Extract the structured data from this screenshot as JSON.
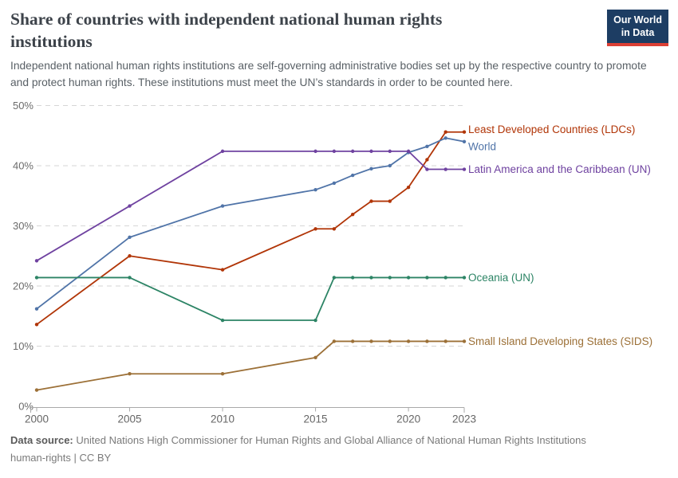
{
  "header": {
    "title": "Share of countries with independent national human rights institutions",
    "subtitle": "Independent national human rights institutions are self-governing administrative bodies set up by the respective country to promote and protect human rights. These institutions must meet the UN’s standards in order to be counted here.",
    "logo": {
      "line1": "Our World",
      "line2": "in Data",
      "bg_color": "#1d3d63",
      "bar_color": "#dc3f34"
    }
  },
  "chart_data": {
    "type": "line",
    "title": "Share of countries with independent national human rights institutions",
    "x": [
      2000,
      2005,
      2010,
      2015,
      2016,
      2017,
      2018,
      2019,
      2020,
      2021,
      2022,
      2023
    ],
    "xlim": [
      2000,
      2023
    ],
    "ylim": [
      0,
      50
    ],
    "xticks": [
      2000,
      2005,
      2010,
      2015,
      2020,
      2023
    ],
    "yticks": [
      0,
      10,
      20,
      30,
      40,
      50
    ],
    "ytick_labels": [
      "0%",
      "10%",
      "20%",
      "30%",
      "40%",
      "50%"
    ],
    "grid": "horizontal-dashed",
    "legend": "end-of-line-labels",
    "series": [
      {
        "name": "Least Developed Countries (LDCs)",
        "color": "#b13507",
        "values": [
          13.6,
          25.0,
          22.7,
          29.5,
          29.5,
          31.9,
          34.1,
          34.1,
          36.4,
          41.0,
          45.6,
          45.6
        ],
        "label_dy": -3
      },
      {
        "name": "World",
        "color": "#5074a8",
        "values": [
          16.2,
          28.1,
          33.3,
          36.0,
          37.1,
          38.4,
          39.5,
          40.0,
          42.2,
          43.2,
          44.6,
          44.0
        ],
        "label_dy": 6
      },
      {
        "name": "Latin America and the Caribbean (UN)",
        "color": "#6f42a0",
        "values": [
          24.2,
          33.3,
          42.4,
          42.4,
          42.4,
          42.4,
          42.4,
          42.4,
          42.4,
          39.4,
          39.4,
          39.4
        ],
        "label_dy": 0
      },
      {
        "name": "Oceania (UN)",
        "color": "#2c8465",
        "values": [
          21.4,
          21.4,
          14.3,
          14.3,
          21.4,
          21.4,
          21.4,
          21.4,
          21.4,
          21.4,
          21.4,
          21.4
        ],
        "label_dy": 0
      },
      {
        "name": "Small Island Developing States (SIDS)",
        "color": "#9c7037",
        "values": [
          2.7,
          5.4,
          5.4,
          8.1,
          10.8,
          10.8,
          10.8,
          10.8,
          10.8,
          10.8,
          10.8,
          10.8
        ],
        "label_dy": 0
      }
    ]
  },
  "footer": {
    "source_label": "Data source:",
    "source_text": "United Nations High Commissioner for Human Rights and Global Alliance of National Human Rights Institutions",
    "note": "human-rights | CC BY"
  }
}
